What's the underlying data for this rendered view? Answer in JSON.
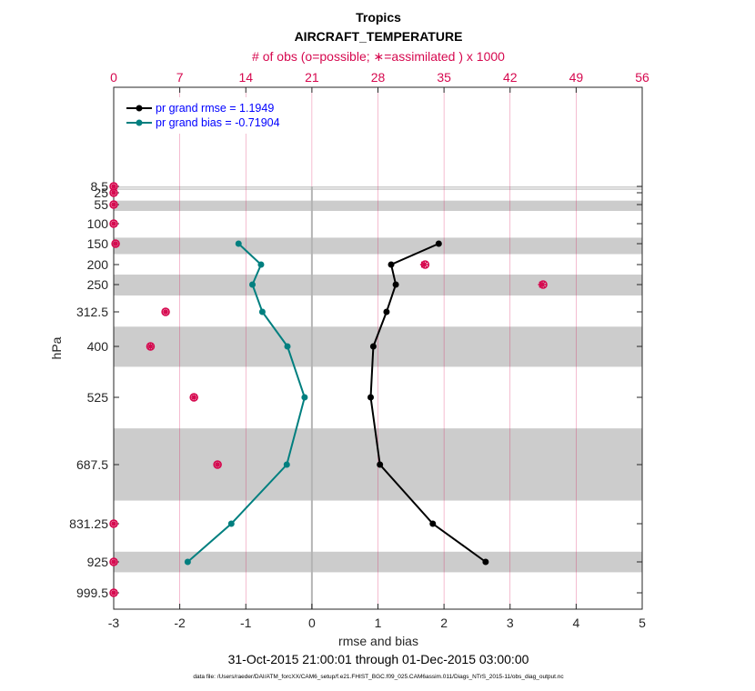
{
  "chart_data": {
    "type": "line",
    "title": "Tropics",
    "subtitle": "AIRCRAFT_TEMPERATURE",
    "top_axis_label": "# of obs (o=possible; ∗=assimilated ) x 1000",
    "top_axis_ticks": [
      "0",
      "7",
      "14",
      "21",
      "28",
      "35",
      "42",
      "49",
      "56"
    ],
    "top_xlim": [
      0,
      56
    ],
    "xlabel": "rmse and bias",
    "xlim": [
      -3,
      5
    ],
    "x_ticks": [
      "-3",
      "-2",
      "-1",
      "0",
      "1",
      "2",
      "3",
      "4",
      "5"
    ],
    "ylabel": "hPa",
    "y_levels": [
      8.5,
      25,
      55,
      100,
      150,
      200,
      250,
      312.5,
      400,
      525,
      687.5,
      831.25,
      925,
      999.5
    ],
    "y_tick_labels": [
      "8.5",
      "25",
      "55",
      "100",
      "150",
      "200",
      "250",
      "312.5",
      "400",
      "525",
      "687.5",
      "831.25",
      "925",
      "999.5"
    ],
    "date_range": "31-Oct-2015 21:00:01 through 01-Dec-2015 03:00:00",
    "footnote": "data file: /Users/raeder/DAI/ATM_forcXX/CAM6_setup/f.e21.FHIST_BGC.f09_025.CAM6assim.011/Diags_NTrS_2015-11/obs_diag_output.nc",
    "legend": {
      "placement": "top-left",
      "rmse": "pr grand rmse = 1.1949",
      "bias": "pr grand bias = -0.71904"
    },
    "series": [
      {
        "name": "rmse",
        "color": "#000000",
        "levels": [
          150,
          200,
          250,
          312.5,
          400,
          525,
          687.5,
          831.25,
          925
        ],
        "values": [
          1.92,
          1.2,
          1.27,
          1.13,
          0.93,
          0.89,
          1.03,
          1.83,
          2.63
        ]
      },
      {
        "name": "bias",
        "color": "#007f7f",
        "levels": [
          150,
          200,
          250,
          312.5,
          400,
          525,
          687.5,
          831.25,
          925
        ],
        "values": [
          -1.11,
          -0.77,
          -0.9,
          -0.75,
          -0.37,
          -0.11,
          -0.38,
          -1.22,
          -1.88
        ]
      }
    ],
    "obs_counts": {
      "color": "#d6094f",
      "levels": [
        8.5,
        25,
        55,
        100,
        150,
        200,
        250,
        312.5,
        400,
        525,
        687.5,
        831.25,
        925,
        999.5
      ],
      "possible": [
        0,
        0,
        0,
        0,
        0.2,
        33.0,
        45.5,
        5.5,
        3.9,
        8.5,
        11.0,
        0,
        0,
        0
      ],
      "assimilated": [
        0,
        0,
        0,
        0,
        0.2,
        32.9,
        45.4,
        5.5,
        3.9,
        8.5,
        11.0,
        0,
        0,
        0
      ]
    },
    "layer_bands_hPa": [
      [
        8.5,
        11
      ],
      [
        14,
        16
      ],
      [
        45,
        70
      ],
      [
        135,
        175
      ],
      [
        225,
        275
      ],
      [
        350,
        450
      ],
      [
        600,
        775
      ],
      [
        900,
        950
      ]
    ],
    "colors": {
      "band": "#cccccc",
      "grid_top": "#d6094f",
      "zero_line": "#b4b4b4"
    }
  }
}
